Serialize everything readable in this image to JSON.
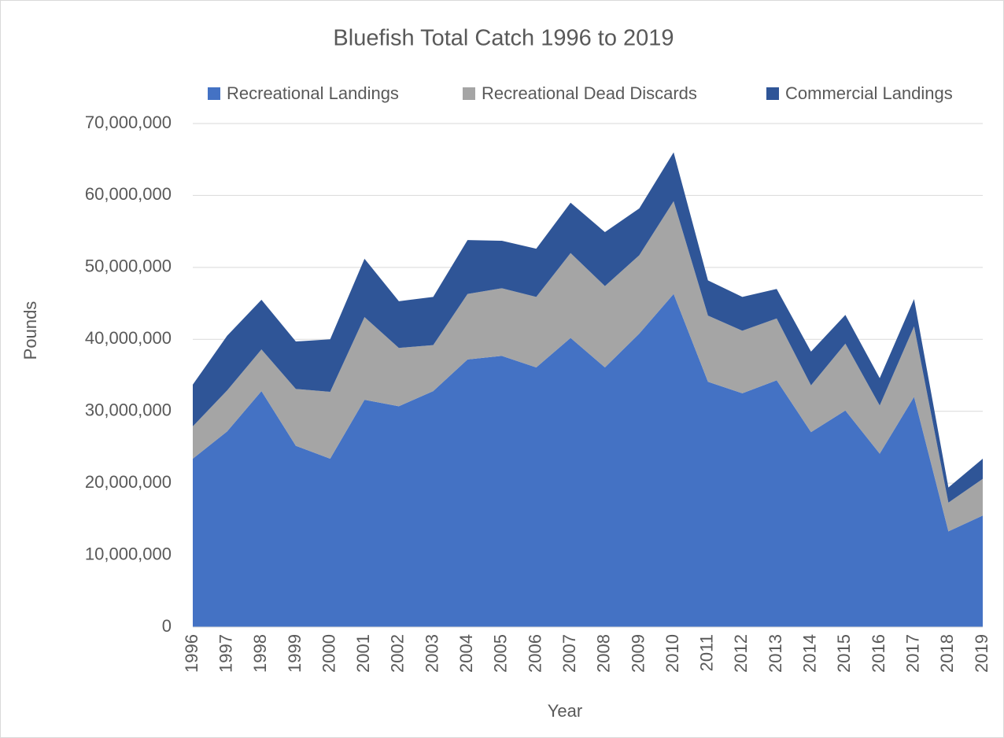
{
  "chart_data": {
    "type": "stacked_area",
    "title": "Bluefish Total Catch 1996 to 2019",
    "xlabel": "Year",
    "ylabel": "Pounds",
    "categories": [
      "1996",
      "1997",
      "1998",
      "1999",
      "2000",
      "2001",
      "2002",
      "2003",
      "2004",
      "2005",
      "2006",
      "2007",
      "2008",
      "2009",
      "2010",
      "2011",
      "2012",
      "2013",
      "2014",
      "2015",
      "2016",
      "2017",
      "2018",
      "2019"
    ],
    "series": [
      {
        "name": "Recreational Landings",
        "color": "#4472c4",
        "values": [
          23400000,
          27200000,
          32800000,
          25200000,
          23400000,
          31600000,
          30700000,
          32800000,
          37200000,
          37700000,
          36100000,
          40200000,
          36100000,
          40800000,
          46300000,
          34100000,
          32500000,
          34300000,
          27100000,
          30100000,
          24100000,
          32000000,
          13300000,
          15500000
        ]
      },
      {
        "name": "Recreational Dead Discards",
        "color": "#a5a5a5",
        "values": [
          4500000,
          5700000,
          5800000,
          7900000,
          9300000,
          11500000,
          8100000,
          6400000,
          9100000,
          9400000,
          9800000,
          11800000,
          11300000,
          10900000,
          12900000,
          9200000,
          8700000,
          8600000,
          6500000,
          9300000,
          6700000,
          9800000,
          4000000,
          5100000
        ]
      },
      {
        "name": "Commercial Landings",
        "color": "#2f5597",
        "values": [
          5800000,
          7600000,
          6900000,
          6600000,
          7300000,
          8100000,
          6500000,
          6700000,
          7500000,
          6600000,
          6700000,
          7000000,
          7500000,
          6500000,
          6800000,
          4900000,
          4700000,
          4100000,
          4700000,
          4000000,
          3800000,
          3800000,
          2100000,
          2800000
        ]
      }
    ],
    "ylim": [
      0,
      70000000
    ],
    "yticks": [
      0,
      {
        "value": 10000000,
        "label": "10,000,000"
      },
      {
        "value": 20000000,
        "label": "20,000,000"
      },
      {
        "value": 30000000,
        "label": "30,000,000"
      },
      {
        "value": 40000000,
        "label": "40,000,000"
      },
      {
        "value": 50000000,
        "label": "50,000,000"
      },
      {
        "value": 60000000,
        "label": "60,000,000"
      },
      {
        "value": 70000000,
        "label": "70,000,000"
      }
    ],
    "grid": true,
    "legend": "top"
  }
}
